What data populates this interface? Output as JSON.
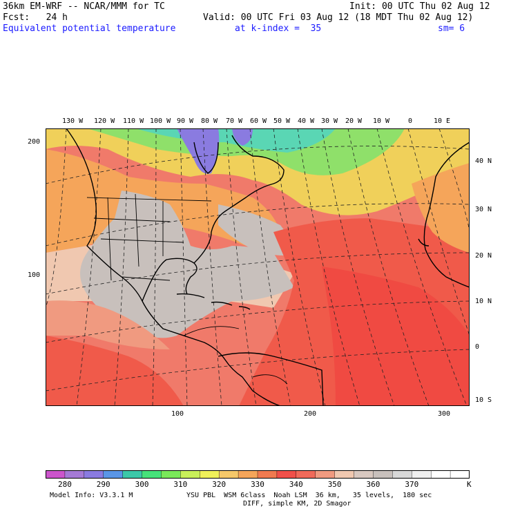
{
  "header": {
    "model": "36km EM-WRF -- NCAR/MMM for TC",
    "init": "Init: 00 UTC Thu 02 Aug 12",
    "fcst": "Fcst:   24 h",
    "valid": "Valid: 00 UTC Fri 03 Aug 12 (18 MDT Thu 02 Aug 12)",
    "field": "Equivalent potential temperature",
    "level": "at k-index =  35",
    "smooth": "sm= 6"
  },
  "top_axis_labels": [
    "130 W",
    "120 W",
    "110 W",
    "100 W",
    "90 W",
    "80 W",
    "70 W",
    "60 W",
    "50 W",
    "40 W",
    "30 W",
    "20 W",
    "10 W",
    "0",
    "10 E"
  ],
  "right_axis_labels": [
    "40 N",
    "30 N",
    "20 N",
    "10 N",
    "0",
    "10 S"
  ],
  "left_axis_labels": [
    "200",
    "100"
  ],
  "bottom_axis_labels": [
    "100",
    "200",
    "300"
  ],
  "colorbar": {
    "labels": [
      "280",
      "290",
      "300",
      "310",
      "320",
      "330",
      "340",
      "350",
      "360",
      "370"
    ],
    "unit": "K",
    "colors": [
      "#cc55cc",
      "#a57ad6",
      "#8a7be0",
      "#5a96e6",
      "#3cc8a8",
      "#46e27a",
      "#7ae85a",
      "#c8f05a",
      "#f0f05a",
      "#f5c86a",
      "#f5a55a",
      "#f07a50",
      "#f0504a",
      "#f06a5a",
      "#f09a80",
      "#f0c8b0",
      "#d8c8c0",
      "#c8c0bc",
      "#d8d8d8",
      "#f0f0f0",
      "#ffffff",
      "#ffffff"
    ]
  },
  "footer": {
    "model_info": "Model Info: V3.3.1 M",
    "physics": "YSU PBL  WSM 6class  Noah LSM  36 km,   35 levels,  180 sec",
    "diff": "DIFF, simple KM, 2D Smagor"
  }
}
